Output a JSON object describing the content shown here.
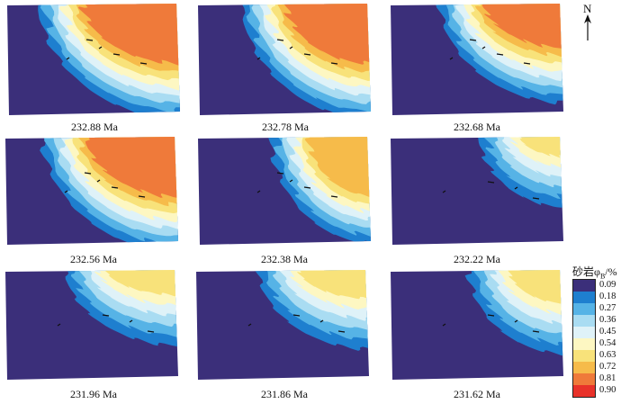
{
  "panels": [
    {
      "label": "232.88 Ma"
    },
    {
      "label": "232.78 Ma"
    },
    {
      "label": "232.68 Ma"
    },
    {
      "label": "232.56 Ma"
    },
    {
      "label": "232.38 Ma"
    },
    {
      "label": "232.22 Ma"
    },
    {
      "label": "231.96 Ma"
    },
    {
      "label": "231.86 Ma"
    },
    {
      "label": "231.62 Ma"
    }
  ],
  "compass": {
    "letter": "N"
  },
  "legend": {
    "title": "砂岩φ",
    "title_sub": "B",
    "title_unit": "/%",
    "items": [
      {
        "label": "0.09",
        "color": "#3b2f7a"
      },
      {
        "label": "0.18",
        "color": "#1e7fcf"
      },
      {
        "label": "0.27",
        "color": "#56b3e6"
      },
      {
        "label": "0.36",
        "color": "#a9dcf2"
      },
      {
        "label": "0.45",
        "color": "#dff2f8"
      },
      {
        "label": "0.54",
        "color": "#fdf7c2"
      },
      {
        "label": "0.63",
        "color": "#f8e27a"
      },
      {
        "label": "0.72",
        "color": "#f6bb4a"
      },
      {
        "label": "0.81",
        "color": "#ef7a3a"
      },
      {
        "label": "0.90",
        "color": "#e8322a"
      }
    ]
  }
}
